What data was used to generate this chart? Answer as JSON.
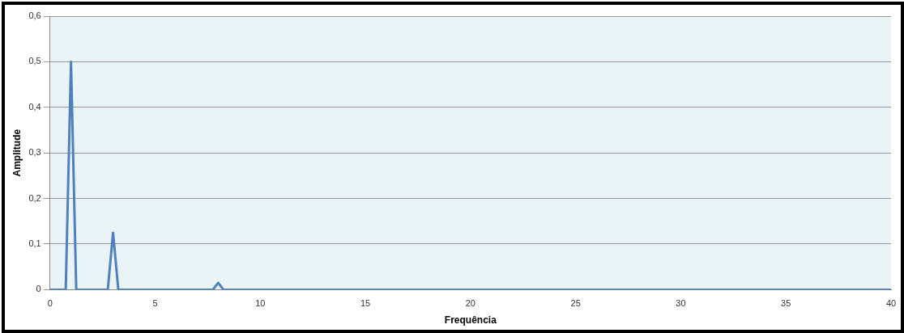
{
  "chart_data": {
    "type": "line",
    "xlabel": "Frequência",
    "ylabel": "Amplitude",
    "x": [
      0,
      0.75,
      1,
      1.25,
      2.75,
      3,
      3.25,
      7.75,
      8,
      8.25,
      40
    ],
    "series": [
      {
        "color": "#4f81bd",
        "values": [
          0,
          0,
          0.5,
          0,
          0,
          0.125,
          0,
          0,
          0.015,
          0,
          0
        ]
      }
    ],
    "xlim": [
      0,
      40
    ],
    "xticks": [
      0,
      5,
      10,
      15,
      20,
      25,
      30,
      35,
      40
    ],
    "ylim": [
      0,
      0.6
    ],
    "yticks": [
      0,
      {
        "value": 0.1,
        "label": "0,1"
      },
      {
        "value": 0.2,
        "label": "0,2"
      },
      {
        "value": 0.3,
        "label": "0,3"
      },
      {
        "value": 0.4,
        "label": "0,4"
      },
      {
        "value": 0.5,
        "label": "0,5"
      },
      {
        "value": 0.6,
        "label": "0,6"
      }
    ],
    "grid": "y",
    "marker": "none",
    "line_style": "solid",
    "legend": false
  }
}
